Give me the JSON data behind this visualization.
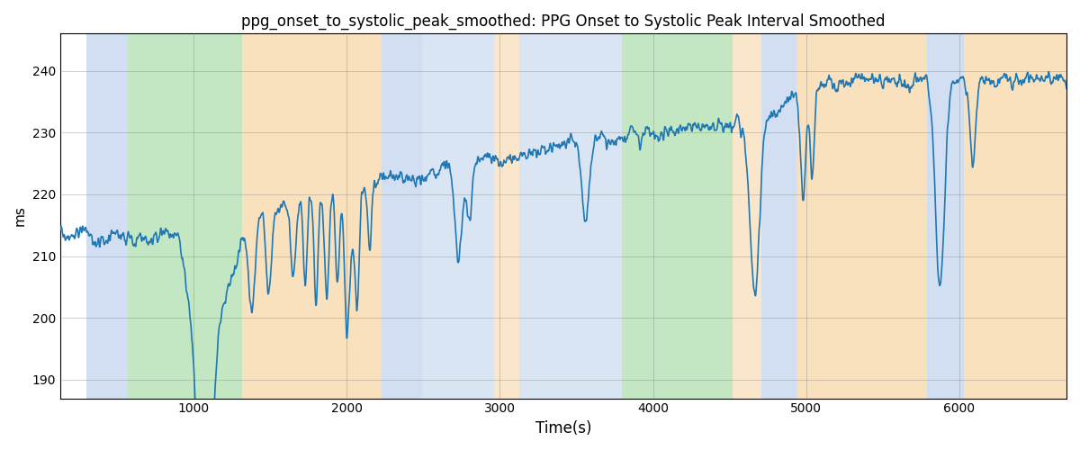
{
  "title": "ppg_onset_to_systolic_peak_smoothed: PPG Onset to Systolic Peak Interval Smoothed",
  "xlabel": "Time(s)",
  "ylabel": "ms",
  "xlim": [
    130,
    6700
  ],
  "ylim": [
    187,
    246
  ],
  "yticks": [
    190,
    200,
    210,
    220,
    230,
    240
  ],
  "line_color": "#1f77b4",
  "line_width": 1.2,
  "bg_bands": [
    {
      "xmin": 300,
      "xmax": 570,
      "color": "#aec6e8",
      "alpha": 0.55
    },
    {
      "xmin": 570,
      "xmax": 1320,
      "color": "#90d490",
      "alpha": 0.55
    },
    {
      "xmin": 1320,
      "xmax": 2230,
      "color": "#f5c98a",
      "alpha": 0.55
    },
    {
      "xmin": 2230,
      "xmax": 2490,
      "color": "#aec6e8",
      "alpha": 0.55
    },
    {
      "xmin": 2490,
      "xmax": 2960,
      "color": "#aec6e8",
      "alpha": 0.45
    },
    {
      "xmin": 2960,
      "xmax": 3130,
      "color": "#f5c98a",
      "alpha": 0.45
    },
    {
      "xmin": 3130,
      "xmax": 3800,
      "color": "#aec6e8",
      "alpha": 0.45
    },
    {
      "xmin": 3800,
      "xmax": 4520,
      "color": "#90d490",
      "alpha": 0.55
    },
    {
      "xmin": 4520,
      "xmax": 4710,
      "color": "#f5c98a",
      "alpha": 0.45
    },
    {
      "xmin": 4710,
      "xmax": 4940,
      "color": "#aec6e8",
      "alpha": 0.55
    },
    {
      "xmin": 4940,
      "xmax": 5790,
      "color": "#f5c98a",
      "alpha": 0.55
    },
    {
      "xmin": 5790,
      "xmax": 6030,
      "color": "#aec6e8",
      "alpha": 0.55
    },
    {
      "xmin": 6030,
      "xmax": 6750,
      "color": "#f5c98a",
      "alpha": 0.55
    }
  ],
  "seed": 99
}
